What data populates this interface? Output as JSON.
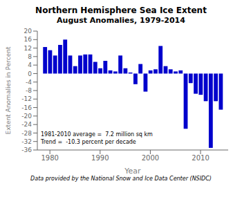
{
  "chart_data": {
    "type": "bar",
    "title": "Northern Hemisphere Sea Ice Extent",
    "subtitle": "August Anomalies, 1979-2014",
    "xlabel": "Year",
    "ylabel": "Extent Anomalies in Percent",
    "footnote": "Data provided by the National Snow and Ice Data Center (NSIDC)",
    "annotations": [
      "1981-2010 average =  7.2 million sq km",
      "Trend =  -10.3 percent per decade"
    ],
    "x": [
      1979,
      1980,
      1981,
      1982,
      1983,
      1984,
      1985,
      1986,
      1987,
      1988,
      1989,
      1990,
      1991,
      1992,
      1993,
      1994,
      1995,
      1996,
      1997,
      1998,
      1999,
      2000,
      2001,
      2002,
      2003,
      2004,
      2005,
      2006,
      2007,
      2008,
      2009,
      2010,
      2011,
      2012,
      2013,
      2014
    ],
    "values": [
      12.5,
      11.0,
      8.5,
      13.5,
      16.0,
      8.5,
      3.5,
      8.5,
      9.0,
      9.0,
      5.5,
      2.5,
      6.0,
      1.5,
      1.0,
      8.5,
      2.5,
      0.5,
      -5.0,
      4.5,
      -8.5,
      1.5,
      2.0,
      13.0,
      3.5,
      2.0,
      1.0,
      1.5,
      -26.0,
      -4.5,
      -9.5,
      -10.0,
      -13.0,
      -35.0,
      -13.0,
      -17.0
    ],
    "color": "#0000CC",
    "xlim": [
      1977.5,
      2015.5
    ],
    "ylim": [
      -36,
      20
    ],
    "xticks": [
      1980,
      1990,
      2000,
      2010
    ],
    "yticks": [
      -36,
      -32,
      -28,
      -24,
      -20,
      -16,
      -12,
      -8,
      -4,
      0,
      4,
      8,
      12,
      16,
      20
    ],
    "grid": false
  }
}
